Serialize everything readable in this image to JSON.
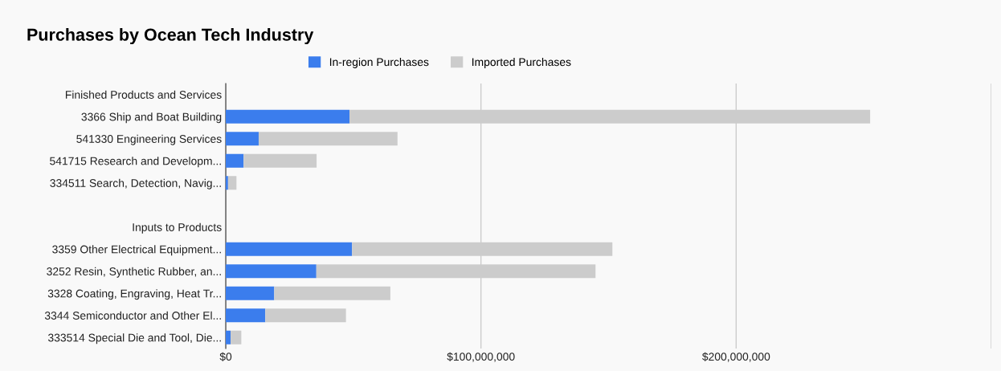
{
  "chart_data": {
    "type": "bar",
    "orientation": "horizontal",
    "stacked": true,
    "title": "Purchases by Ocean Tech Industry",
    "categories": [
      "Finished Products and Services",
      "3366 Ship and Boat Building",
      "541330 Engineering Services",
      "541715 Research and Developm...",
      "334511 Search, Detection, Navig...",
      null,
      "Inputs to Products",
      "3359 Other Electrical Equipment...",
      "3252 Resin, Synthetic Rubber, an...",
      "3328 Coating, Engraving, Heat Tr...",
      "3344 Semiconductor and Other El...",
      "333514 Special Die and Tool, Die..."
    ],
    "series": [
      {
        "name": "In-region Purchases",
        "color": "#3b7ded",
        "values": [
          null,
          48500000,
          12900000,
          7000000,
          900000,
          null,
          null,
          49500000,
          35500000,
          19000000,
          15500000,
          1900000
        ]
      },
      {
        "name": "Imported Purchases",
        "color": "#cccccc",
        "values": [
          null,
          204000000,
          54400000,
          28600000,
          3300000,
          null,
          null,
          102000000,
          109400000,
          45500000,
          31600000,
          4200000
        ]
      }
    ],
    "xlim": [
      0,
      300000000
    ],
    "xticks": [
      {
        "value": 0,
        "label": "$0"
      },
      {
        "value": 100000000,
        "label": "$100,000,000"
      },
      {
        "value": 200000000,
        "label": "$200,000,000"
      },
      {
        "value": 300000000,
        "label": null
      }
    ],
    "grid": "x",
    "legend": "top"
  }
}
